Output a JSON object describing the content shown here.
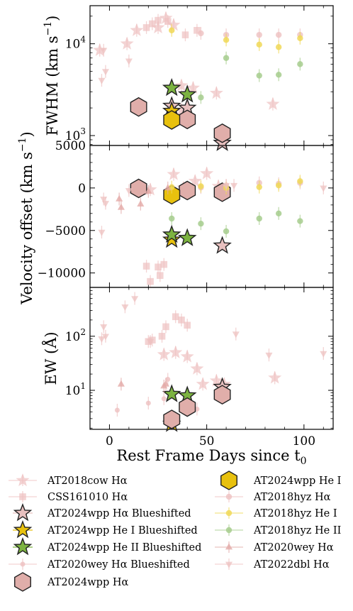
{
  "chart_data": {
    "type": "scatter",
    "xlabel": "Rest Frame Days since t",
    "xlabel_subscript": "0",
    "xlim": [
      -10,
      115
    ],
    "xticks": [
      0,
      50,
      100
    ],
    "shared_x": true,
    "panels": [
      {
        "key": "fwhm",
        "ylabel": "FWHM (km s",
        "ylabel_sup": "−1",
        "ylabel_end": ")",
        "yscale": "log",
        "ylim": [
          780,
          26000
        ],
        "yticks": [
          {
            "value": 1000,
            "base": "10",
            "exp": "3"
          },
          {
            "value": 10000,
            "base": "10",
            "exp": "4"
          }
        ]
      },
      {
        "key": "vel",
        "ylabel": "Velocity offset (km s",
        "ylabel_sup": "−1",
        "ylabel_end": ")",
        "yscale": "linear",
        "ylim": [
          -11700,
          5000
        ],
        "yticks": [
          {
            "value": 5000,
            "label": "5000"
          },
          {
            "value": 0,
            "label": "0"
          },
          {
            "value": -5000,
            "label": "−5000"
          },
          {
            "value": -10000,
            "label": "−10000"
          }
        ]
      },
      {
        "key": "ew",
        "ylabel": "EW (Å)",
        "yscale": "log",
        "ylim": [
          1.9,
          800
        ],
        "yticks": [
          {
            "value": 10,
            "base": "10",
            "exp": "1"
          },
          {
            "value": 100,
            "base": "10",
            "exp": "2"
          }
        ]
      }
    ],
    "series": [
      {
        "name": "AT2018cow Hα",
        "marker": "star",
        "color": "#eec1c0",
        "size": 10,
        "alpha": 0.7,
        "fwhm": [
          [
            -5,
            8500
          ],
          [
            9,
            10000
          ],
          [
            14,
            14000
          ],
          [
            25,
            15000
          ],
          [
            29,
            19000
          ],
          [
            33,
            16000
          ],
          [
            37,
            3500
          ],
          [
            37,
            1900
          ],
          [
            43,
            3300
          ],
          [
            55,
            2900
          ],
          [
            84,
            2200
          ]
        ],
        "vel": [
          [
            21,
            -200
          ],
          [
            33,
            1600
          ],
          [
            38,
            0
          ],
          [
            44,
            800
          ],
          [
            50,
            1700
          ],
          [
            56,
            200
          ],
          [
            59,
            -700
          ]
        ],
        "ew": [
          [
            28,
            46
          ],
          [
            34,
            50
          ],
          [
            40,
            42
          ],
          [
            45,
            25
          ],
          [
            48,
            13
          ],
          [
            55,
            15
          ],
          [
            59,
            13
          ],
          [
            85,
            17
          ]
        ]
      },
      {
        "name": "CSS161010 Hα",
        "marker": "square",
        "color": "#eec1c0",
        "size": 8,
        "alpha": 0.7,
        "fwhm": [
          [
            19,
            15000
          ],
          [
            22,
            16500
          ],
          [
            25,
            18000
          ],
          [
            30,
            17500
          ],
          [
            39,
            12500
          ],
          [
            45,
            14000
          ]
        ],
        "vel": [
          [
            19,
            -9200
          ],
          [
            21,
            -11000
          ],
          [
            25,
            -9300
          ],
          [
            26,
            -10300
          ],
          [
            28,
            -9000
          ]
        ],
        "ew": [
          [
            20,
            80
          ],
          [
            22,
            85
          ],
          [
            27,
            100
          ],
          [
            29,
            150
          ],
          [
            34,
            230
          ],
          [
            37,
            200
          ],
          [
            40,
            160
          ]
        ]
      },
      {
        "name": "AT2024wpp Hα Blueshifted",
        "marker": "star",
        "color": "#e8c0bf",
        "edge": "#222222",
        "size": 12,
        "fwhm": [
          [
            32,
            2100
          ],
          [
            40,
            2000
          ],
          [
            58,
            830
          ]
        ],
        "vel": [
          [
            58,
            -6800
          ]
        ],
        "ew": [
          [
            58,
            11.5
          ]
        ]
      },
      {
        "name": "AT2024wpp He I Blueshifted",
        "marker": "star",
        "color": "#e8c10e",
        "edge": "#222222",
        "size": 12,
        "fwhm": [
          [
            32,
            1850
          ]
        ],
        "vel": [
          [
            32,
            -6100
          ]
        ],
        "ew": [
          [
            32,
            2.4
          ]
        ]
      },
      {
        "name": "AT2024wpp He II Blueshifted",
        "marker": "star",
        "color": "#7cb341",
        "edge": "#222222",
        "size": 12,
        "fwhm": [
          [
            32,
            3300
          ],
          [
            40,
            2800
          ]
        ],
        "vel": [
          [
            32,
            -5500
          ],
          [
            40,
            -5900
          ]
        ],
        "ew": [
          [
            32,
            8.5
          ],
          [
            40,
            8
          ]
        ]
      },
      {
        "name": "AT2020wey Hα Blueshifted",
        "marker": "circle",
        "color": "#eec1c0",
        "size": 5,
        "alpha": 0.8,
        "fwhm": [],
        "vel": [],
        "ew": [
          [
            4,
            4.3
          ],
          [
            20,
            5.8
          ],
          [
            28,
            7
          ],
          [
            30,
            16
          ],
          [
            45,
            4.5
          ]
        ]
      },
      {
        "name": "AT2024wpp Hα",
        "marker": "hexagon",
        "color": "#e0aeaa",
        "edge": "#222222",
        "size": 13,
        "fwhm": [
          [
            15,
            2050
          ],
          [
            40,
            1500
          ],
          [
            58,
            1060
          ]
        ],
        "vel": [
          [
            15,
            -50
          ],
          [
            40,
            -300
          ],
          [
            58,
            -500
          ]
        ],
        "ew": [
          [
            32,
            2.9
          ],
          [
            40,
            4.9
          ],
          [
            58,
            8.3
          ]
        ]
      },
      {
        "name": "AT2024wpp He I",
        "marker": "hexagon",
        "color": "#e8c10e",
        "edge": "#222222",
        "size": 13,
        "fwhm": [
          [
            32,
            1480
          ]
        ],
        "vel": [
          [
            32,
            -800
          ]
        ],
        "ew": []
      },
      {
        "name": "AT2018hyz Hα",
        "marker": "circle",
        "color": "#eec1c0",
        "size": 6,
        "alpha": 0.8,
        "fwhm": [
          [
            47,
            13000
          ],
          [
            60,
            12500
          ],
          [
            77,
            12500
          ],
          [
            87,
            12500
          ],
          [
            98,
            12500
          ]
        ],
        "vel": [
          [
            47,
            50
          ],
          [
            60,
            300
          ],
          [
            77,
            600
          ],
          [
            87,
            500
          ],
          [
            98,
            600
          ]
        ],
        "ew": []
      },
      {
        "name": "AT2018hyz He I",
        "marker": "circle",
        "color": "#f0d857",
        "size": 6,
        "alpha": 0.85,
        "fwhm": [
          [
            32,
            14000
          ],
          [
            60,
            11000
          ],
          [
            77,
            9800
          ],
          [
            87,
            9200
          ],
          [
            98,
            11500
          ]
        ],
        "vel": [
          [
            32,
            100
          ],
          [
            47,
            200
          ],
          [
            60,
            0
          ],
          [
            77,
            100
          ],
          [
            87,
            300
          ],
          [
            98,
            800
          ]
        ],
        "ew": []
      },
      {
        "name": "AT2018hyz He II",
        "marker": "circle",
        "color": "#a6cd8d",
        "size": 6,
        "alpha": 0.85,
        "fwhm": [
          [
            47,
            2600
          ],
          [
            60,
            7000
          ],
          [
            77,
            4500
          ],
          [
            87,
            4600
          ],
          [
            98,
            6000
          ]
        ],
        "vel": [
          [
            32,
            -3600
          ],
          [
            47,
            -4200
          ],
          [
            60,
            -5100
          ],
          [
            77,
            -3600
          ],
          [
            87,
            -3000
          ],
          [
            98,
            -3900
          ]
        ],
        "ew": []
      },
      {
        "name": "AT2020wey Hα",
        "marker": "triangle-up",
        "color": "#e3aaa8",
        "size": 7,
        "alpha": 0.8,
        "fwhm": [],
        "vel": [
          [
            5,
            -1300
          ],
          [
            6,
            -2300
          ],
          [
            16,
            -1900
          ],
          [
            20,
            -400
          ],
          [
            30,
            0
          ]
        ],
        "ew": [
          [
            6,
            13
          ],
          [
            28,
            12
          ],
          [
            29,
            13
          ]
        ]
      },
      {
        "name": "AT2022dbl Hα",
        "marker": "triangle-down",
        "color": "#eec1c0",
        "size": 7,
        "alpha": 0.75,
        "fwhm": [
          [
            -3,
            8500
          ],
          [
            -2,
            5000
          ],
          [
            -4,
            4000
          ],
          [
            10,
            6500
          ]
        ],
        "vel": [
          [
            -3,
            -1300
          ],
          [
            -2,
            -1800
          ],
          [
            -4,
            -5200
          ],
          [
            10,
            -300
          ],
          [
            60,
            300
          ],
          [
            64,
            300
          ],
          [
            110,
            0
          ]
        ],
        "ew": [
          [
            -4,
            90
          ],
          [
            -3,
            150
          ],
          [
            -2,
            100
          ],
          [
            8,
            350
          ],
          [
            13,
            500
          ],
          [
            21,
            80
          ],
          [
            65,
            110
          ],
          [
            82,
            45
          ],
          [
            110,
            48
          ]
        ]
      }
    ]
  }
}
